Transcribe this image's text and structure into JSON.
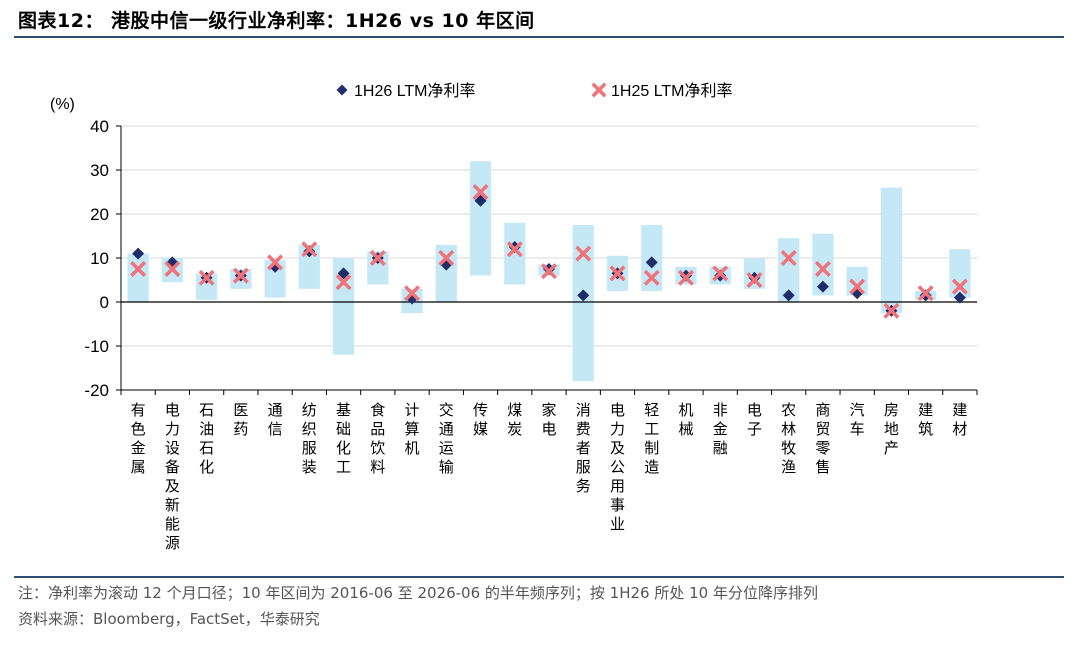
{
  "header": {
    "title": "图表12：  港股中信一级行业净利率：1H26 vs 10 年区间"
  },
  "footer": {
    "note": "注：净利率为滚动 12 个月口径；10 年区间为 2016-06 至 2026-06 的半年频序列；按 1H26 所处 10 年分位降序排列",
    "source": "资料来源：Bloomberg，FactSet，华泰研究"
  },
  "colors": {
    "range_bar": "#c5e8f7",
    "series_1h26": "#1f2d6b",
    "series_1h25": "#ef7378",
    "rule": "#2e4f77"
  },
  "chart_data": {
    "type": "range_scatter",
    "unit_label": "(%)",
    "ylim": [
      -20,
      40
    ],
    "yticks": [
      -20,
      -10,
      0,
      10,
      20,
      30,
      40
    ],
    "legend_position": "top",
    "categories": [
      "有色金属",
      "电力设备及新能源",
      "石油石化",
      "医药",
      "通信",
      "纺织服装",
      "基础化工",
      "食品饮料",
      "计算机",
      "交通运输",
      "传媒",
      "煤炭",
      "家电",
      "消费者服务",
      "电力及公用事业",
      "轻工制造",
      "机械",
      "非金融",
      "电子",
      "农林牧渔",
      "商贸零售",
      "汽车",
      "房地产",
      "建筑",
      "建材"
    ],
    "range_low": [
      0.0,
      4.5,
      0.5,
      3.0,
      1.0,
      3.0,
      -12.0,
      4.0,
      -2.5,
      0.0,
      6.0,
      4.0,
      6.0,
      -18.0,
      2.5,
      2.5,
      4.0,
      4.0,
      3.0,
      0.0,
      1.5,
      1.5,
      -2.5,
      0.5,
      1.0
    ],
    "range_high": [
      11.0,
      10.0,
      6.5,
      7.5,
      9.5,
      13.0,
      10.0,
      11.5,
      3.0,
      13.0,
      32.0,
      18.0,
      8.5,
      17.5,
      10.5,
      17.5,
      8.0,
      8.0,
      10.0,
      14.5,
      15.5,
      8.0,
      26.0,
      2.5,
      12.0
    ],
    "series": [
      {
        "name": "1H26 LTM净利率",
        "marker": "diamond",
        "values": [
          11.0,
          9.0,
          5.5,
          6.0,
          8.0,
          11.5,
          6.5,
          10.0,
          0.8,
          8.5,
          23.0,
          12.5,
          7.5,
          1.5,
          6.5,
          9.0,
          6.0,
          6.0,
          5.5,
          1.5,
          3.5,
          2.0,
          -2.0,
          1.5,
          1.0
        ]
      },
      {
        "name": "1H25 LTM净利率",
        "marker": "x",
        "values": [
          7.5,
          7.5,
          5.5,
          6.0,
          9.0,
          12.0,
          4.5,
          10.0,
          2.0,
          10.0,
          25.0,
          12.0,
          7.0,
          11.0,
          6.5,
          5.5,
          5.5,
          6.5,
          5.0,
          10.0,
          7.5,
          3.5,
          -2.0,
          2.0,
          3.5
        ]
      }
    ]
  }
}
